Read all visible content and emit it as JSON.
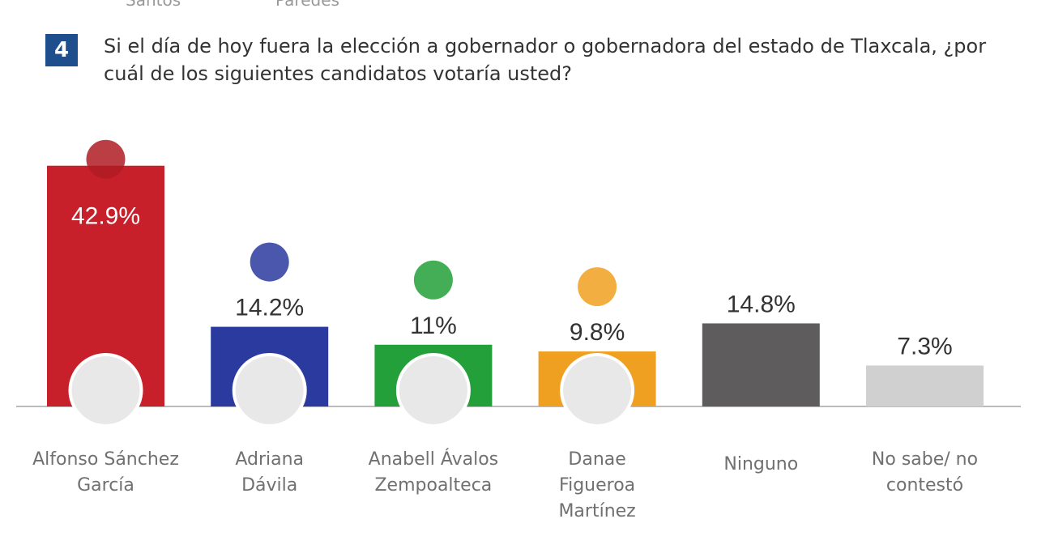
{
  "header": {
    "cut_labels": [
      "Santos",
      "Paredes"
    ],
    "number": "4",
    "question": "Si el día de hoy fuera la elección a gobernador o gobernadora del estado de Tlaxcala, ¿por cuál de los siguientes candidatos votaría usted?"
  },
  "chart_data": {
    "type": "bar",
    "categories": [
      "Alfonso Sánchez García",
      "Adriana Dávila",
      "Anabell Ávalos Zempoalteca",
      "Danae Figueroa Martínez",
      "Ninguno",
      "No sabe/ no contestó"
    ],
    "values": [
      42.9,
      14.2,
      11,
      9.8,
      14.8,
      7.3
    ],
    "value_labels": [
      "42.9%",
      "14.2%",
      "11%",
      "9.8%",
      "14.8%",
      "7.3%"
    ],
    "colors": [
      "#c8202a",
      "#2b3a9e",
      "#23a03a",
      "#f0a020",
      "#5e5c5d",
      "#d0d0d0"
    ]
  }
}
